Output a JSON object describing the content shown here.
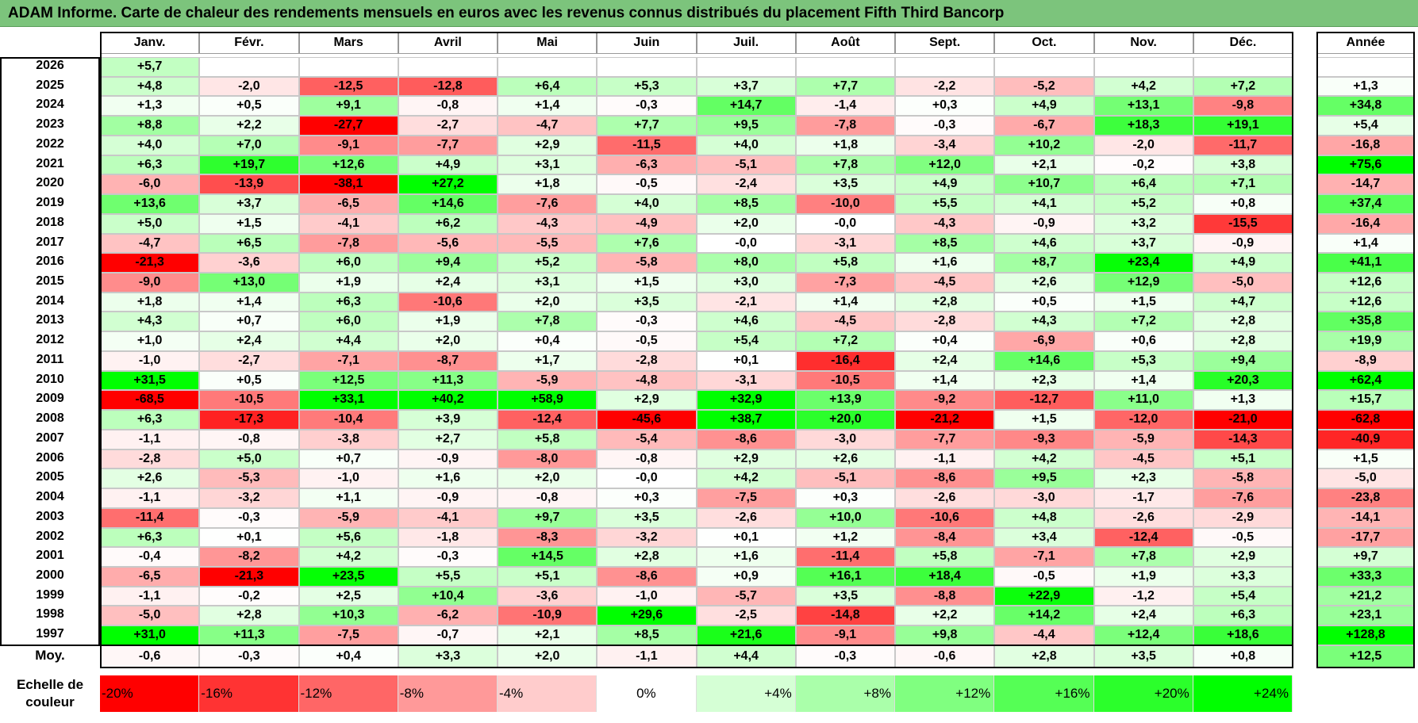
{
  "title": "ADAM Informe. Carte de chaleur des rendements mensuels en euros avec les revenus connus distribués du placement Fifth Third Bancorp",
  "chart_data": {
    "type": "heatmap",
    "title": "ADAM Informe. Carte de chaleur des rendements mensuels en euros avec les revenus connus distribués du placement Fifth Third Bancorp",
    "months": [
      "Janv.",
      "Févr.",
      "Mars",
      "Avril",
      "Mai",
      "Juin",
      "Juil.",
      "Août",
      "Sept.",
      "Oct.",
      "Nov.",
      "Déc."
    ],
    "year_header": "Année",
    "avg_label": "Moy.",
    "rows": [
      {
        "year": "2026",
        "months": [
          "+5,7",
          "",
          "",
          "",
          "",
          "",
          "",
          "",
          "",
          "",
          "",
          ""
        ],
        "annual": ""
      },
      {
        "year": "2025",
        "months": [
          "+4,8",
          "-2,0",
          "-12,5",
          "-12,8",
          "+6,4",
          "+5,3",
          "+3,7",
          "+7,7",
          "-2,2",
          "-5,2",
          "+4,2",
          "+7,2"
        ],
        "annual": "+1,3"
      },
      {
        "year": "2024",
        "months": [
          "+1,3",
          "+0,5",
          "+9,1",
          "-0,8",
          "+1,4",
          "-0,3",
          "+14,7",
          "-1,4",
          "+0,3",
          "+4,9",
          "+13,1",
          "-9,8"
        ],
        "annual": "+34,8"
      },
      {
        "year": "2023",
        "months": [
          "+8,8",
          "+2,2",
          "-27,7",
          "-2,7",
          "-4,7",
          "+7,7",
          "+9,5",
          "-7,8",
          "-0,3",
          "-6,7",
          "+18,3",
          "+19,1"
        ],
        "annual": "+5,4"
      },
      {
        "year": "2022",
        "months": [
          "+4,0",
          "+7,0",
          "-9,1",
          "-7,7",
          "+2,9",
          "-11,5",
          "+4,0",
          "+1,8",
          "-3,4",
          "+10,2",
          "-2,0",
          "-11,7"
        ],
        "annual": "-16,8"
      },
      {
        "year": "2021",
        "months": [
          "+6,3",
          "+19,7",
          "+12,6",
          "+4,9",
          "+3,1",
          "-6,3",
          "-5,1",
          "+7,8",
          "+12,0",
          "+2,1",
          "-0,2",
          "+3,8"
        ],
        "annual": "+75,6"
      },
      {
        "year": "2020",
        "months": [
          "-6,0",
          "-13,9",
          "-38,1",
          "+27,2",
          "+1,8",
          "-0,5",
          "-2,4",
          "+3,5",
          "+4,9",
          "+10,7",
          "+6,4",
          "+7,1"
        ],
        "annual": "-14,7"
      },
      {
        "year": "2019",
        "months": [
          "+13,6",
          "+3,7",
          "-6,5",
          "+14,6",
          "-7,6",
          "+4,0",
          "+8,5",
          "-10,0",
          "+5,5",
          "+4,1",
          "+5,2",
          "+0,8"
        ],
        "annual": "+37,4"
      },
      {
        "year": "2018",
        "months": [
          "+5,0",
          "+1,5",
          "-4,1",
          "+6,2",
          "-4,3",
          "-4,9",
          "+2,0",
          "-0,0",
          "-4,3",
          "-0,9",
          "+3,2",
          "-15,5"
        ],
        "annual": "-16,4"
      },
      {
        "year": "2017",
        "months": [
          "-4,7",
          "+6,5",
          "-7,8",
          "-5,6",
          "-5,5",
          "+7,6",
          "-0,0",
          "-3,1",
          "+8,5",
          "+4,6",
          "+3,7",
          "-0,9"
        ],
        "annual": "+1,4"
      },
      {
        "year": "2016",
        "months": [
          "-21,3",
          "-3,6",
          "+6,0",
          "+9,4",
          "+5,2",
          "-5,8",
          "+8,0",
          "+5,8",
          "+1,6",
          "+8,7",
          "+23,4",
          "+4,9"
        ],
        "annual": "+41,1"
      },
      {
        "year": "2015",
        "months": [
          "-9,0",
          "+13,0",
          "+1,9",
          "+2,4",
          "+3,1",
          "+1,5",
          "+3,0",
          "-7,3",
          "-4,5",
          "+2,6",
          "+12,9",
          "-5,0"
        ],
        "annual": "+12,6"
      },
      {
        "year": "2014",
        "months": [
          "+1,8",
          "+1,4",
          "+6,3",
          "-10,6",
          "+2,0",
          "+3,5",
          "-2,1",
          "+1,4",
          "+2,8",
          "+0,5",
          "+1,5",
          "+4,7"
        ],
        "annual": "+12,6"
      },
      {
        "year": "2013",
        "months": [
          "+4,3",
          "+0,7",
          "+6,0",
          "+1,9",
          "+7,8",
          "-0,3",
          "+4,6",
          "-4,5",
          "-2,8",
          "+4,3",
          "+7,2",
          "+2,8"
        ],
        "annual": "+35,8"
      },
      {
        "year": "2012",
        "months": [
          "+1,0",
          "+2,4",
          "+4,4",
          "+2,0",
          "+0,4",
          "-0,5",
          "+5,4",
          "+7,2",
          "+0,4",
          "-6,9",
          "+0,6",
          "+2,8"
        ],
        "annual": "+19,9"
      },
      {
        "year": "2011",
        "months": [
          "-1,0",
          "-2,7",
          "-7,1",
          "-8,7",
          "+1,7",
          "-2,8",
          "+0,1",
          "-16,4",
          "+2,4",
          "+14,6",
          "+5,3",
          "+9,4"
        ],
        "annual": "-8,9"
      },
      {
        "year": "2010",
        "months": [
          "+31,5",
          "+0,5",
          "+12,5",
          "+11,3",
          "-5,9",
          "-4,8",
          "-3,1",
          "-10,5",
          "+1,4",
          "+2,3",
          "+1,4",
          "+20,3"
        ],
        "annual": "+62,4"
      },
      {
        "year": "2009",
        "months": [
          "-68,5",
          "-10,5",
          "+33,1",
          "+40,2",
          "+58,9",
          "+2,9",
          "+32,9",
          "+13,9",
          "-9,2",
          "-12,7",
          "+11,0",
          "+1,3"
        ],
        "annual": "+15,7"
      },
      {
        "year": "2008",
        "months": [
          "+6,3",
          "-17,3",
          "-10,4",
          "+3,9",
          "-12,4",
          "-45,6",
          "+38,7",
          "+20,0",
          "-21,2",
          "+1,5",
          "-12,0",
          "-21,0"
        ],
        "annual": "-62,8"
      },
      {
        "year": "2007",
        "months": [
          "-1,1",
          "-0,8",
          "-3,8",
          "+2,7",
          "+5,8",
          "-5,4",
          "-8,6",
          "-3,0",
          "-7,7",
          "-9,3",
          "-5,9",
          "-14,3"
        ],
        "annual": "-40,9"
      },
      {
        "year": "2006",
        "months": [
          "-2,8",
          "+5,0",
          "+0,7",
          "-0,9",
          "-8,0",
          "-0,8",
          "+2,9",
          "+2,6",
          "-1,1",
          "+4,2",
          "-4,5",
          "+5,1"
        ],
        "annual": "+1,5"
      },
      {
        "year": "2005",
        "months": [
          "+2,6",
          "-5,3",
          "-1,0",
          "+1,6",
          "+2,0",
          "-0,0",
          "+4,2",
          "-5,1",
          "-8,6",
          "+9,5",
          "+2,3",
          "-5,8"
        ],
        "annual": "-5,0"
      },
      {
        "year": "2004",
        "months": [
          "-1,1",
          "-3,2",
          "+1,1",
          "-0,9",
          "-0,8",
          "+0,3",
          "-7,5",
          "+0,3",
          "-2,6",
          "-3,0",
          "-1,7",
          "-7,6"
        ],
        "annual": "-23,8"
      },
      {
        "year": "2003",
        "months": [
          "-11,4",
          "-0,3",
          "-5,9",
          "-4,1",
          "+9,7",
          "+3,5",
          "-2,6",
          "+10,0",
          "-10,6",
          "+4,8",
          "-2,6",
          "-2,9"
        ],
        "annual": "-14,1"
      },
      {
        "year": "2002",
        "months": [
          "+6,3",
          "+0,1",
          "+5,6",
          "-1,8",
          "-8,3",
          "-3,2",
          "+0,1",
          "+1,2",
          "-8,4",
          "+3,4",
          "-12,4",
          "-0,5"
        ],
        "annual": "-17,7"
      },
      {
        "year": "2001",
        "months": [
          "-0,4",
          "-8,2",
          "+4,2",
          "-0,3",
          "+14,5",
          "+2,8",
          "+1,6",
          "-11,4",
          "+5,8",
          "-7,1",
          "+7,8",
          "+2,9"
        ],
        "annual": "+9,7"
      },
      {
        "year": "2000",
        "months": [
          "-6,5",
          "-21,3",
          "+23,5",
          "+5,5",
          "+5,1",
          "-8,6",
          "+0,9",
          "+16,1",
          "+18,4",
          "-0,5",
          "+1,9",
          "+3,3"
        ],
        "annual": "+33,3"
      },
      {
        "year": "1999",
        "months": [
          "-1,1",
          "-0,2",
          "+2,5",
          "+10,4",
          "-3,6",
          "-1,0",
          "-5,7",
          "+3,5",
          "-8,8",
          "+22,9",
          "-1,2",
          "+5,4"
        ],
        "annual": "+21,2"
      },
      {
        "year": "1998",
        "months": [
          "-5,0",
          "+2,8",
          "+10,3",
          "-6,2",
          "-10,9",
          "+29,6",
          "-2,5",
          "-14,8",
          "+2,2",
          "+14,2",
          "+2,4",
          "+6,3"
        ],
        "annual": "+23,1"
      },
      {
        "year": "1997",
        "months": [
          "+31,0",
          "+11,3",
          "-7,5",
          "-0,7",
          "+2,1",
          "+8,5",
          "+21,6",
          "-9,1",
          "+9,8",
          "-4,4",
          "+12,4",
          "+18,6"
        ],
        "annual": "+128,8"
      }
    ],
    "averages": {
      "months": [
        "-0,6",
        "-0,3",
        "+0,4",
        "+3,3",
        "+2,0",
        "-1,1",
        "+4,4",
        "-0,3",
        "-0,6",
        "+2,8",
        "+3,5",
        "+0,8"
      ],
      "annual": "+12,5"
    },
    "color_scale": {
      "label": "Echelle de\ncouleur",
      "stops": [
        {
          "label": "-20%",
          "value": -20
        },
        {
          "label": "-16%",
          "value": -16
        },
        {
          "label": "-12%",
          "value": -12
        },
        {
          "label": "-8%",
          "value": -8
        },
        {
          "label": "-4%",
          "value": -4
        },
        {
          "label": "0%",
          "value": 0
        },
        {
          "label": "+4%",
          "value": 4
        },
        {
          "label": "+8%",
          "value": 8
        },
        {
          "label": "+12%",
          "value": 12
        },
        {
          "label": "+16%",
          "value": 16
        },
        {
          "label": "+20%",
          "value": 20
        },
        {
          "label": "+24%",
          "value": 24
        }
      ]
    }
  }
}
